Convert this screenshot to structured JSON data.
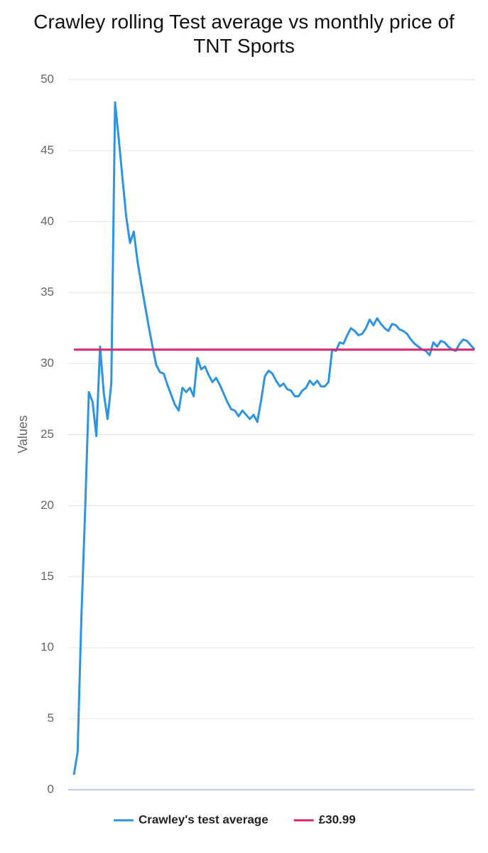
{
  "chart_data": {
    "type": "line",
    "title": "Crawley rolling Test average vs monthly price of TNT Sports",
    "y_label": "Values",
    "ylim": [
      0,
      50
    ],
    "yticks": [
      0,
      5,
      10,
      15,
      20,
      25,
      30,
      35,
      40,
      45,
      50
    ],
    "grid": true,
    "legend": "bottom",
    "series": [
      {
        "name": "Crawley's test average",
        "color": "#2e93e0",
        "values": [
          1.05,
          2.65,
          12.1,
          19.6,
          28.0,
          27.3,
          24.9,
          31.2,
          27.9,
          26.1,
          28.6,
          48.4,
          45.8,
          43.0,
          40.3,
          38.5,
          39.3,
          37.2,
          35.6,
          34.1,
          32.6,
          31.2,
          29.9,
          29.4,
          29.3,
          28.5,
          27.8,
          27.1,
          26.7,
          28.3,
          28.0,
          28.3,
          27.7,
          30.4,
          29.6,
          29.8,
          29.2,
          28.7,
          29.0,
          28.5,
          27.9,
          27.3,
          26.8,
          26.7,
          26.3,
          26.7,
          26.4,
          26.1,
          26.4,
          25.9,
          27.4,
          29.1,
          29.5,
          29.3,
          28.8,
          28.4,
          28.6,
          28.2,
          28.1,
          27.7,
          27.7,
          28.1,
          28.3,
          28.8,
          28.5,
          28.8,
          28.4,
          28.4,
          28.7,
          31.0,
          30.9,
          31.5,
          31.4,
          32.0,
          32.5,
          32.3,
          32.0,
          32.1,
          32.5,
          33.1,
          32.7,
          33.2,
          32.8,
          32.5,
          32.3,
          32.8,
          32.7,
          32.4,
          32.3,
          32.1,
          31.7,
          31.4,
          31.2,
          31.0,
          30.9,
          30.6,
          31.5,
          31.2,
          31.6,
          31.5,
          31.2,
          31.0,
          30.9,
          31.4,
          31.7,
          31.6,
          31.3,
          31.0
        ]
      }
    ],
    "reference_line": {
      "name": "£30.99",
      "value": 30.99,
      "color": "#d6246e"
    }
  }
}
